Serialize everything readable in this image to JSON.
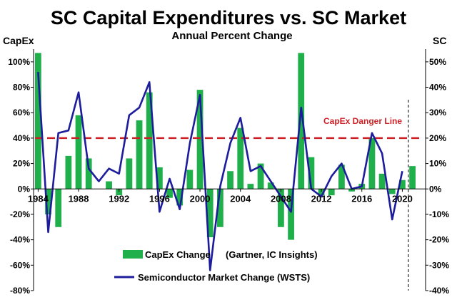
{
  "chart_data": {
    "type": "bar",
    "title": "SC Capital Expenditures vs. SC Market",
    "subtitle": "Annual Percent Change",
    "left_axis_label": "CapEx",
    "right_axis_label": "SC",
    "left_ylim": [
      -80,
      110
    ],
    "right_ylim": [
      -40,
      55
    ],
    "left_ticks": [
      -80,
      -60,
      -40,
      -20,
      0,
      20,
      40,
      60,
      80,
      100
    ],
    "left_tick_labels": [
      "-80%",
      "-60%",
      "-40%",
      "-20%",
      "0%",
      "20%",
      "40%",
      "60%",
      "80%",
      "100%"
    ],
    "right_ticks": [
      -40,
      -30,
      -20,
      -10,
      0,
      10,
      20,
      30,
      40,
      50
    ],
    "right_tick_labels": [
      "-40%",
      "-30%",
      "-20%",
      "-10%",
      "0%",
      "10%",
      "20%",
      "30%",
      "40%",
      "50%"
    ],
    "x_tick_years": [
      1984,
      1988,
      1992,
      1996,
      2000,
      2004,
      2008,
      2012,
      2016,
      2020
    ],
    "x_tick_labels": [
      "1984",
      "1988",
      "1992",
      "1996",
      "2000",
      "2004",
      "2008",
      "2012",
      "2016",
      "2020"
    ],
    "years": [
      1984,
      1985,
      1986,
      1987,
      1988,
      1989,
      1990,
      1991,
      1992,
      1993,
      1994,
      1995,
      1996,
      1997,
      1998,
      1999,
      2000,
      2001,
      2002,
      2003,
      2004,
      2005,
      2006,
      2007,
      2008,
      2009,
      2010,
      2011,
      2012,
      2013,
      2014,
      2015,
      2016,
      2017,
      2018,
      2019,
      2020,
      2021
    ],
    "series": [
      {
        "name": "CapEx Change",
        "source": "(Gartner, IC Insights)",
        "axis": "left",
        "type": "bar",
        "color": "#1fb04b",
        "values": [
          107,
          -20,
          -30,
          26,
          58,
          24,
          0,
          6,
          -5,
          24,
          54,
          76,
          17,
          -7,
          -13,
          15,
          78,
          -38,
          -30,
          14,
          48,
          4,
          20,
          5,
          -30,
          -40,
          107,
          25,
          -5,
          -5,
          19,
          -2,
          4,
          40,
          12,
          -4,
          7,
          18
        ]
      },
      {
        "name": "Semiconductor Market Change (WSTS)",
        "axis": "right",
        "type": "line",
        "color": "#1c1c9c",
        "values": [
          46,
          -17,
          22,
          23,
          38,
          8,
          3,
          8,
          6,
          29,
          32,
          42,
          -9,
          4,
          -8,
          18,
          37,
          -32,
          1,
          18,
          28,
          7,
          9,
          3,
          -3,
          -9,
          32,
          0,
          -3,
          5,
          10,
          0,
          1,
          22,
          14,
          -12,
          7
        ]
      }
    ],
    "danger_line": {
      "label": "CapEx Danger Line",
      "value": 40,
      "axis": "left",
      "color": "#cc1f24"
    },
    "divider_year": 2020.6,
    "legend_position": "bottom-center",
    "grid": false
  }
}
